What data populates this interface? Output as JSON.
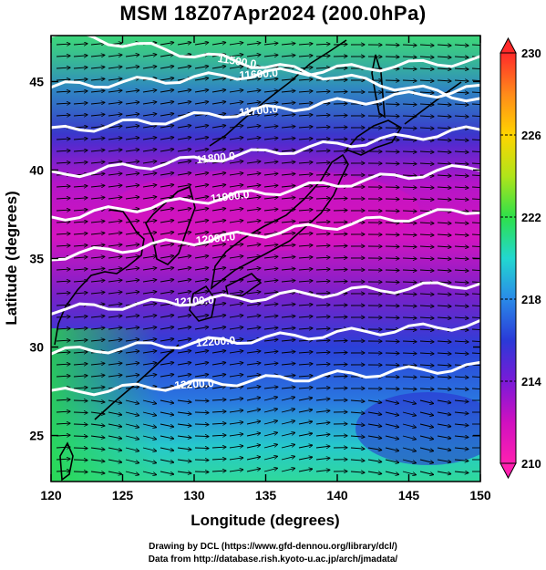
{
  "title": "MSM 18Z07Apr2024 (200.0hPa)",
  "axes": {
    "xlabel": "Longitude (degrees)",
    "ylabel": "Latitude  (degrees)",
    "xlim": [
      120,
      150
    ],
    "ylim": [
      22.4,
      47.6
    ],
    "xticks": [
      120,
      125,
      130,
      135,
      140,
      145,
      150
    ],
    "yticks": [
      25,
      30,
      35,
      40,
      45
    ]
  },
  "colorbar": {
    "min": 210,
    "max": 230,
    "tick_labels": [
      "230",
      "226",
      "222",
      "218",
      "214",
      "210"
    ],
    "tick_values": [
      230,
      226,
      222,
      218,
      214,
      210
    ],
    "colors": [
      "#ff2a2a",
      "#ff8a1a",
      "#ffd400",
      "#b0e41a",
      "#2ee04a",
      "#22d8d0",
      "#2a8ae8",
      "#2a3ad8",
      "#7a1ad8",
      "#d010c0",
      "#ff20b0"
    ]
  },
  "chart_data": {
    "type": "heatmap",
    "contours": [
      {
        "label": "11500.0",
        "value": 11500,
        "lat_at_120": 47.8,
        "lat_at_150": 44.0
      },
      {
        "label": "11600.0",
        "value": 11600,
        "lat_at_120": 44.7,
        "lat_at_150": 46.2
      },
      {
        "label": "11700.0",
        "value": 11700,
        "lat_at_120": 42.2,
        "lat_at_150": 44.6
      },
      {
        "label": "11800.0",
        "value": 11800,
        "lat_at_120": 39.7,
        "lat_at_150": 42.3
      },
      {
        "label": "11900.0",
        "value": 11900,
        "lat_at_120": 37.3,
        "lat_at_150": 40.2
      },
      {
        "label": "12000.0",
        "value": 12000,
        "lat_at_120": 35.1,
        "lat_at_150": 37.8
      },
      {
        "label": "12100.0",
        "value": 12100,
        "lat_at_120": 32.1,
        "lat_at_150": 33.6
      },
      {
        "label": "12200.0",
        "value": 12200,
        "lat_at_120": 29.7,
        "lat_at_150": 31.3
      },
      {
        "label": "12200.0",
        "value": 12200,
        "lat_at_120": 27.4,
        "lat_at_150": 28.9
      }
    ]
  },
  "credits": {
    "line1": "Drawing by DCL (https://www.gfd-dennou.org/library/dcl/)",
    "line2": "Data from http://database.rish.kyoto-u.ac.jp/arch/jmadata/"
  }
}
